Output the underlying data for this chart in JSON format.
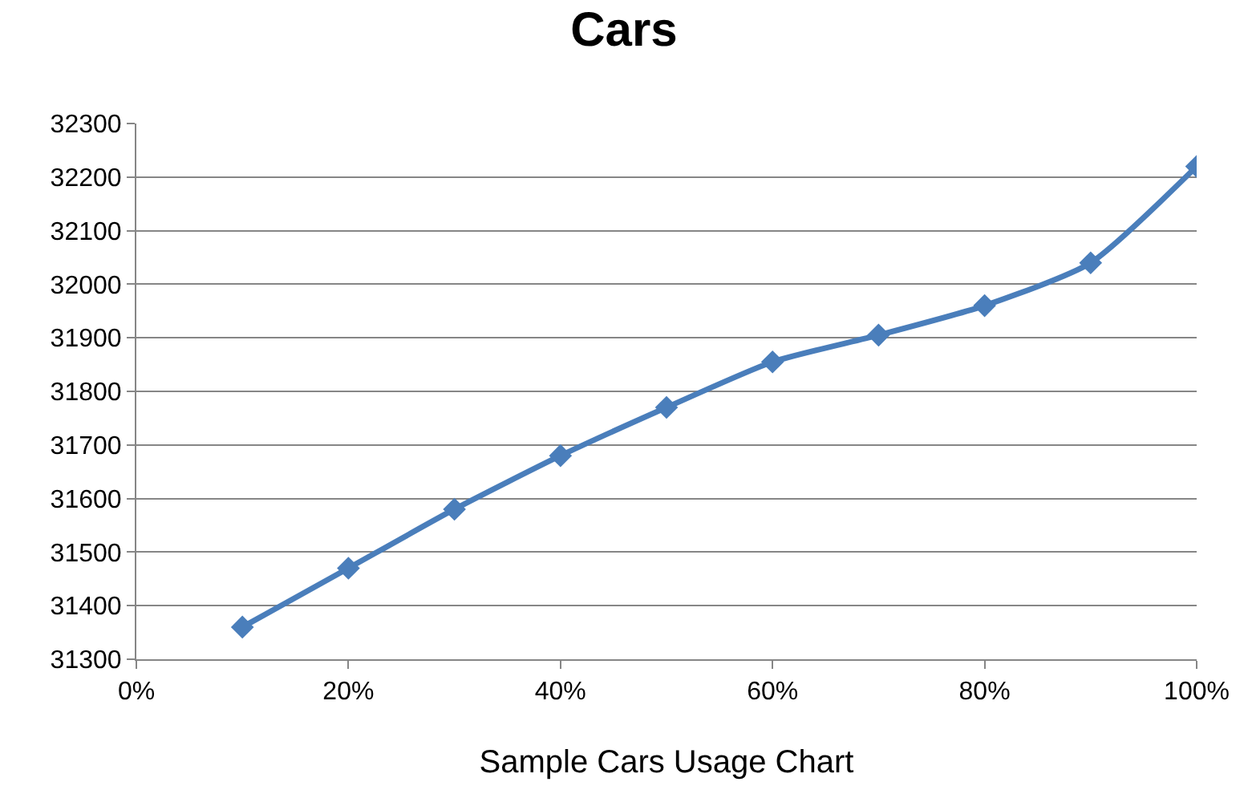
{
  "chart_data": {
    "type": "line",
    "title": "Cars",
    "xlabel": "Sample Cars Usage Chart",
    "x": [
      10,
      20,
      30,
      40,
      50,
      60,
      70,
      80,
      90,
      100
    ],
    "series": [
      {
        "color": "#4a7ebb",
        "values": [
          31360,
          31470,
          31580,
          31680,
          31770,
          31855,
          31905,
          31960,
          32040,
          32220
        ]
      }
    ],
    "xlim": [
      0,
      100
    ],
    "xticks": [
      {
        "value": 0,
        "label": "0%"
      },
      {
        "value": 20,
        "label": "20%"
      },
      {
        "value": 40,
        "label": "40%"
      },
      {
        "value": 60,
        "label": "60%"
      },
      {
        "value": 80,
        "label": "80%"
      },
      {
        "value": 100,
        "label": "100%"
      }
    ],
    "ylim": [
      31300,
      32300
    ],
    "yticks": [
      31300,
      31400,
      31500,
      31600,
      31700,
      31800,
      31900,
      32000,
      32100,
      32200,
      32300
    ],
    "grid": "y",
    "marker": "diamond",
    "line_style": "solid"
  }
}
